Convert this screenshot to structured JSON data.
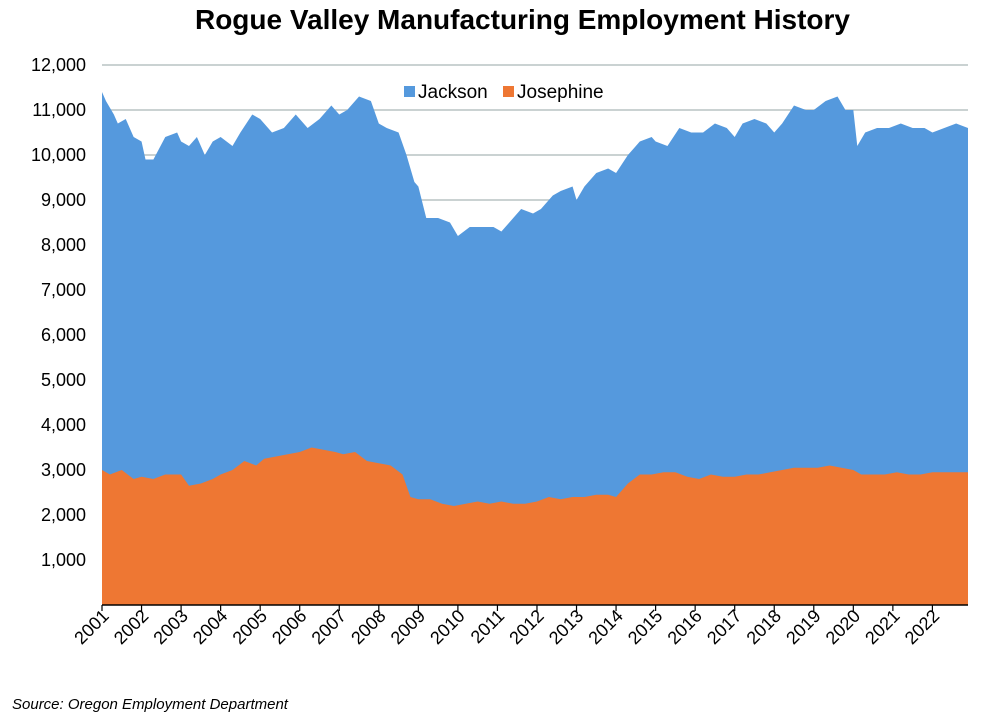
{
  "chart_data": {
    "type": "area",
    "title": "Rogue Valley Manufacturing Employment History",
    "stacked": true,
    "xlabel": "",
    "ylabel": "",
    "ylim": [
      0,
      12000
    ],
    "yticks": [
      1000,
      2000,
      3000,
      4000,
      5000,
      6000,
      7000,
      8000,
      9000,
      10000,
      11000,
      12000
    ],
    "ytick_labels": [
      "1,000",
      "2,000",
      "3,000",
      "4,000",
      "5,000",
      "6,000",
      "7,000",
      "8,000",
      "9,000",
      "10,000",
      "11,000",
      "12,000"
    ],
    "xrange": [
      2001,
      2022.9
    ],
    "xticks": [
      "2001",
      "2002",
      "2003",
      "2004",
      "2005",
      "2006",
      "2007",
      "2008",
      "2009",
      "2010",
      "2011",
      "2012",
      "2013",
      "2014",
      "2015",
      "2016",
      "2017",
      "2018",
      "2019",
      "2020",
      "2021",
      "2022"
    ],
    "grid": true,
    "legend_position": "top-center",
    "series": [
      {
        "name": "Jackson",
        "color": "#5599DD",
        "stack_total_x": [
          2001.0,
          2001.1,
          2001.3,
          2001.4,
          2001.6,
          2001.8,
          2002.0,
          2002.1,
          2002.3,
          2002.6,
          2002.9,
          2003.0,
          2003.2,
          2003.4,
          2003.6,
          2003.8,
          2004.0,
          2004.3,
          2004.5,
          2004.8,
          2005.0,
          2005.3,
          2005.6,
          2005.9,
          2006.2,
          2006.5,
          2006.8,
          2007.0,
          2007.2,
          2007.5,
          2007.8,
          2008.0,
          2008.2,
          2008.5,
          2008.7,
          2008.9,
          2009.0,
          2009.2,
          2009.5,
          2009.8,
          2010.0,
          2010.3,
          2010.6,
          2010.9,
          2011.1,
          2011.4,
          2011.6,
          2011.9,
          2012.1,
          2012.4,
          2012.6,
          2012.9,
          2013.0,
          2013.2,
          2013.5,
          2013.8,
          2014.0,
          2014.3,
          2014.6,
          2014.9,
          2015.0,
          2015.3,
          2015.6,
          2015.9,
          2016.2,
          2016.5,
          2016.8,
          2017.0,
          2017.2,
          2017.5,
          2017.8,
          2018.0,
          2018.2,
          2018.5,
          2018.8,
          2019.0,
          2019.3,
          2019.6,
          2019.8,
          2020.0,
          2020.1,
          2020.3,
          2020.6,
          2020.9,
          2021.2,
          2021.5,
          2021.8,
          2022.0,
          2022.3,
          2022.6,
          2022.9
        ],
        "stack_total_y": [
          11400,
          11200,
          10900,
          10700,
          10800,
          10400,
          10300,
          9900,
          9900,
          10400,
          10500,
          10300,
          10200,
          10400,
          10000,
          10300,
          10400,
          10200,
          10500,
          10900,
          10800,
          10500,
          10600,
          10900,
          10600,
          10800,
          11100,
          10900,
          11000,
          11300,
          11200,
          10700,
          10600,
          10500,
          10000,
          9400,
          9300,
          8600,
          8600,
          8500,
          8200,
          8400,
          8400,
          8400,
          8300,
          8600,
          8800,
          8700,
          8800,
          9100,
          9200,
          9300,
          9000,
          9300,
          9600,
          9700,
          9600,
          10000,
          10300,
          10400,
          10300,
          10200,
          10600,
          10500,
          10500,
          10700,
          10600,
          10400,
          10700,
          10800,
          10700,
          10500,
          10700,
          11100,
          11000,
          11000,
          11200,
          11300,
          11000,
          11000,
          10200,
          10500,
          10600,
          10600,
          10700,
          10600,
          10600,
          10500,
          10600,
          10700,
          10600
        ]
      },
      {
        "name": "Josephine",
        "color": "#EE7733",
        "x": [
          2001.0,
          2001.2,
          2001.5,
          2001.8,
          2002.0,
          2002.3,
          2002.6,
          2002.9,
          2003.0,
          2003.2,
          2003.5,
          2003.8,
          2004.0,
          2004.3,
          2004.6,
          2004.9,
          2005.1,
          2005.4,
          2005.7,
          2006.0,
          2006.3,
          2006.6,
          2006.9,
          2007.1,
          2007.4,
          2007.7,
          2008.0,
          2008.3,
          2008.6,
          2008.8,
          2009.0,
          2009.3,
          2009.6,
          2009.9,
          2010.2,
          2010.5,
          2010.8,
          2011.1,
          2011.4,
          2011.7,
          2012.0,
          2012.3,
          2012.6,
          2012.9,
          2013.2,
          2013.5,
          2013.8,
          2014.0,
          2014.3,
          2014.6,
          2014.9,
          2015.2,
          2015.5,
          2015.8,
          2016.1,
          2016.4,
          2016.7,
          2017.0,
          2017.3,
          2017.6,
          2017.9,
          2018.2,
          2018.5,
          2018.8,
          2019.1,
          2019.4,
          2019.7,
          2020.0,
          2020.2,
          2020.5,
          2020.8,
          2021.1,
          2021.4,
          2021.7,
          2022.0,
          2022.3,
          2022.6,
          2022.9
        ],
        "values": [
          3000,
          2900,
          3000,
          2800,
          2850,
          2800,
          2900,
          2900,
          2900,
          2650,
          2700,
          2800,
          2900,
          3000,
          3200,
          3100,
          3250,
          3300,
          3350,
          3400,
          3500,
          3450,
          3400,
          3350,
          3400,
          3200,
          3150,
          3100,
          2900,
          2400,
          2350,
          2350,
          2250,
          2200,
          2250,
          2300,
          2250,
          2300,
          2250,
          2250,
          2300,
          2400,
          2350,
          2400,
          2400,
          2450,
          2450,
          2400,
          2700,
          2900,
          2900,
          2950,
          2950,
          2850,
          2800,
          2900,
          2850,
          2850,
          2900,
          2900,
          2950,
          3000,
          3050,
          3050,
          3050,
          3100,
          3050,
          3000,
          2900,
          2900,
          2900,
          2950,
          2900,
          2900,
          2950,
          2950,
          2950,
          2950
        ]
      }
    ]
  },
  "source_note": "Source: Oregon Employment Department"
}
